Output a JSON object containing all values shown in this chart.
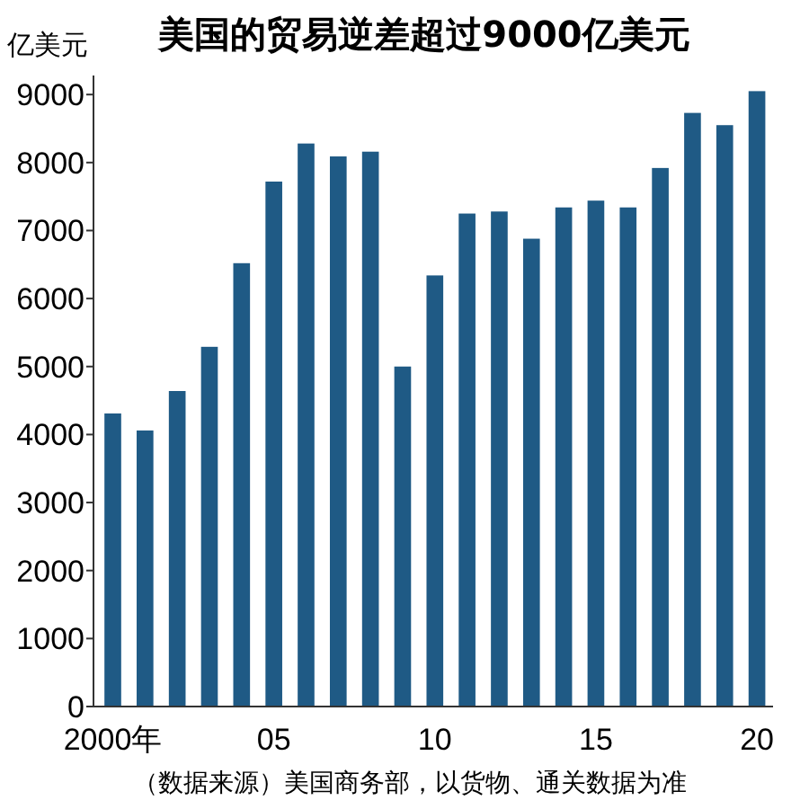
{
  "chart_data": {
    "type": "bar",
    "title": "美国的贸易逆差超过9000亿美元",
    "ylabel": "亿美元",
    "categories": [
      "2000年",
      null,
      null,
      null,
      null,
      "05",
      null,
      null,
      null,
      null,
      "10",
      null,
      null,
      null,
      null,
      "15",
      null,
      null,
      null,
      null,
      "20"
    ],
    "values": [
      4310,
      4060,
      4640,
      5290,
      6520,
      7720,
      8280,
      8090,
      8160,
      5000,
      6340,
      7250,
      7280,
      6880,
      7340,
      7440,
      7340,
      7920,
      8730,
      8550,
      9050
    ],
    "color": "#1f5a85",
    "ylim": [
      0,
      9280
    ],
    "yticks": [
      0,
      1000,
      2000,
      3000,
      4000,
      5000,
      6000,
      7000,
      8000,
      9000
    ],
    "grid": false,
    "annotations": [
      "（数据来源）美国商务部，以货物、通关数据为准"
    ]
  }
}
